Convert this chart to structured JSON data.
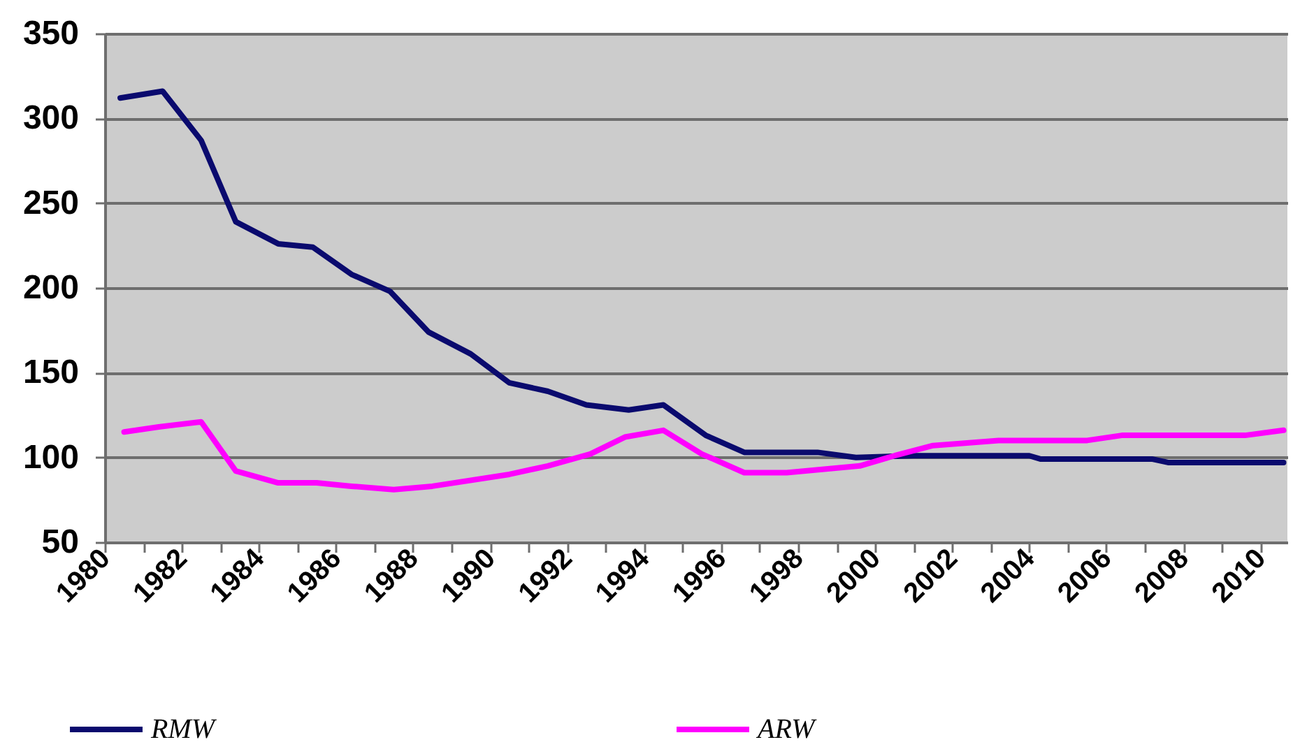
{
  "chart_data": {
    "type": "line",
    "series": [
      {
        "name": "RMW",
        "color": "#0a0a6e",
        "x": [
          1980.4,
          1981.5,
          1982.5,
          1983.4,
          1984.5,
          1985.4,
          1986.4,
          1987.4,
          1988.4,
          1989.5,
          1990.5,
          1991.5,
          1992.5,
          1993.6,
          1994.5,
          1995.6,
          1996.6,
          1998.5,
          1999.5,
          2001.0,
          2004.0,
          2004.3,
          2007.2,
          2007.6,
          2010.6
        ],
        "values": [
          312,
          316,
          287,
          239,
          226,
          224,
          208,
          198,
          174,
          161,
          144,
          139,
          131,
          128,
          131,
          113,
          103,
          103,
          100,
          101,
          101,
          99,
          99,
          97,
          97
        ]
      },
      {
        "name": "ARW",
        "color": "#ff00ff",
        "x": [
          1980.5,
          1981.4,
          1982.5,
          1983.4,
          1984.5,
          1985.5,
          1986.4,
          1987.5,
          1988.5,
          1990.5,
          1991.5,
          1992.6,
          1993.5,
          1994.5,
          1995.5,
          1996.6,
          1997.7,
          1999.6,
          2000.5,
          2001.5,
          2003.2,
          2005.5,
          2006.4,
          2009.6,
          2010.6
        ],
        "values": [
          115,
          118,
          121,
          92,
          85,
          85,
          83,
          81,
          83,
          90,
          95,
          102,
          112,
          116,
          102,
          91,
          91,
          95,
          101,
          107,
          110,
          110,
          113,
          113,
          116
        ]
      }
    ],
    "xlim": [
      1980,
      2010.7
    ],
    "xticks": [
      1980,
      {
        "value": 1981,
        "label": null
      },
      1982,
      {
        "value": 1983,
        "label": null
      },
      1984,
      {
        "value": 1985,
        "label": null
      },
      1986,
      {
        "value": 1987,
        "label": null
      },
      1988,
      {
        "value": 1989,
        "label": null
      },
      1990,
      {
        "value": 1991,
        "label": null
      },
      1992,
      {
        "value": 1993,
        "label": null
      },
      1994,
      {
        "value": 1995,
        "label": null
      },
      1996,
      {
        "value": 1997,
        "label": null
      },
      1998,
      {
        "value": 1999,
        "label": null
      },
      2000,
      {
        "value": 2001,
        "label": null
      },
      2002,
      {
        "value": 2003,
        "label": null
      },
      2004,
      {
        "value": 2005,
        "label": null
      },
      2006,
      {
        "value": 2007,
        "label": null
      },
      2008,
      {
        "value": 2009,
        "label": null
      },
      2010
    ],
    "ylim": [
      50,
      350
    ],
    "yticks": [
      50,
      100,
      150,
      200,
      250,
      300,
      350
    ],
    "grid": "y",
    "legend": "bottom",
    "line_style": "solid"
  }
}
